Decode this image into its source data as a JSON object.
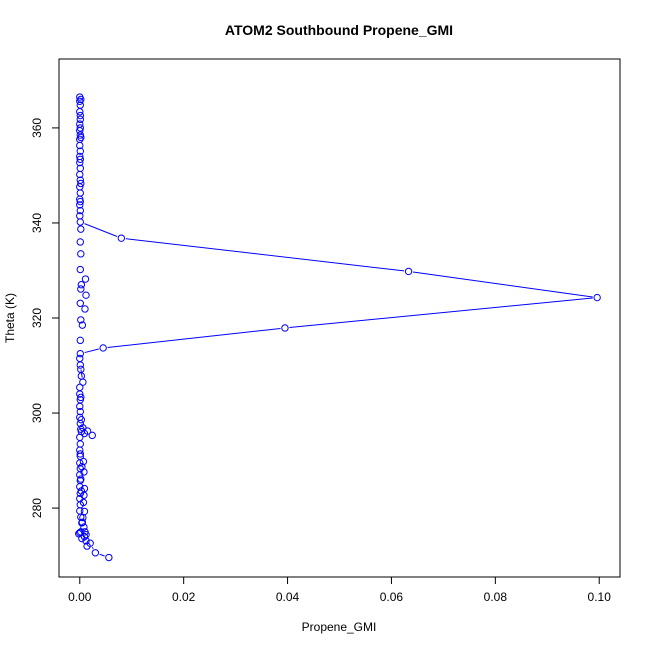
{
  "chart_data": {
    "type": "line",
    "title": "ATOM2 Southbound Propene_GMI",
    "xlabel": "Propene_GMI",
    "ylabel": "Theta (K)",
    "xlim": [
      -0.004,
      0.104
    ],
    "ylim": [
      265.5,
      374.5
    ],
    "x_ticks": [
      0.0,
      0.02,
      0.04,
      0.06,
      0.08,
      0.1
    ],
    "x_tick_labels": [
      "0.00",
      "0.02",
      "0.04",
      "0.06",
      "0.08",
      "0.10"
    ],
    "y_ticks": [
      280,
      300,
      320,
      340,
      360
    ],
    "y_tick_labels": [
      "280",
      "300",
      "320",
      "340",
      "360"
    ],
    "grid": false,
    "legend": "none",
    "colors": {
      "series": "#0000ff",
      "axes": "#000000"
    },
    "markers": "open-circle",
    "series": [
      {
        "values": [
          [
            0.0,
            366.5
          ],
          [
            0.0,
            365.6
          ],
          [
            0.0001,
            364.8
          ],
          [
            0.0,
            363.4
          ],
          [
            0.0001,
            362.6
          ],
          [
            0.0,
            360.8
          ],
          [
            0.0001,
            360.0
          ],
          [
            0.0,
            359.4
          ],
          [
            0.0001,
            358.5
          ],
          [
            0.0,
            357.6
          ],
          [
            0.0,
            356.3
          ],
          [
            0.0001,
            355.1
          ],
          [
            0.0,
            354.0
          ],
          [
            0.0,
            352.7
          ],
          [
            0.0001,
            351.5
          ],
          [
            0.0,
            350.2
          ],
          [
            0.0001,
            349.0
          ],
          [
            0.0,
            347.6
          ],
          [
            0.0001,
            346.3
          ],
          [
            0.0,
            345.0
          ],
          [
            0.0,
            343.8
          ],
          [
            0.0001,
            342.6
          ],
          [
            0.0,
            341.5
          ],
          [
            0.0001,
            340.2
          ],
          [
            0.008,
            336.8
          ],
          [
            0.0633,
            329.8
          ],
          [
            0.0996,
            324.3
          ],
          [
            0.0395,
            317.9
          ],
          [
            0.0045,
            313.7
          ],
          [
            0.0001,
            312.5
          ],
          [
            0.0,
            311.5
          ],
          [
            0.0001,
            310.1
          ],
          [
            0.0006,
            306.5
          ],
          [
            0.0,
            305.4
          ],
          [
            0.0,
            304.0
          ],
          [
            0.0001,
            302.8
          ],
          [
            0.0,
            301.4
          ],
          [
            0.0001,
            300.3
          ],
          [
            0.0,
            299.1
          ],
          [
            0.0001,
            297.8
          ],
          [
            0.0002,
            296.6
          ],
          [
            0.0003,
            296.1
          ],
          [
            0.0,
            294.9
          ],
          [
            0.0001,
            293.5
          ],
          [
            0.0,
            292.2
          ],
          [
            0.0001,
            290.9
          ],
          [
            0.0,
            289.5
          ],
          [
            0.0001,
            288.3
          ],
          [
            0.0,
            287.0
          ],
          [
            0.0001,
            285.8
          ],
          [
            0.0,
            284.5
          ],
          [
            0.0001,
            283.1
          ],
          [
            0.0,
            282.0
          ],
          [
            0.0001,
            280.7
          ],
          [
            0.0,
            279.4
          ],
          [
            0.0002,
            278.1
          ],
          [
            0.0005,
            277.0
          ],
          [
            0.0008,
            276.0
          ],
          [
            0.001,
            275.0
          ],
          [
            0.0009,
            274.0
          ],
          [
            0.0012,
            273.1
          ],
          [
            0.002,
            272.6
          ],
          [
            0.003,
            270.6
          ],
          [
            0.0056,
            269.6
          ]
        ]
      }
    ],
    "scatter_points": [
      [
        0.0015,
        296.2
      ],
      [
        0.0024,
        295.3
      ],
      [
        0.0009,
        295.7
      ],
      [
        0.0006,
        296.9
      ],
      [
        0.0011,
        328.2
      ],
      [
        0.0012,
        324.8
      ],
      [
        0.001,
        321.9
      ],
      [
        0.0003,
        327.0
      ],
      [
        0.0005,
        318.5
      ],
      [
        0.0002,
        309.2
      ],
      [
        0.0007,
        289.8
      ],
      [
        0.0008,
        287.6
      ],
      [
        0.0009,
        284.1
      ],
      [
        0.0008,
        282.7
      ],
      [
        0.0007,
        281.2
      ],
      [
        0.0009,
        279.3
      ],
      [
        0.0006,
        278.0
      ],
      [
        0.0004,
        276.9
      ],
      [
        0.0002,
        275.0
      ],
      [
        0.0,
        274.8
      ],
      [
        -0.0002,
        274.6
      ],
      [
        0.0004,
        273.6
      ],
      [
        0.0012,
        274.4
      ],
      [
        0.0014,
        272.0
      ],
      [
        0.0003,
        283.6
      ],
      [
        0.0002,
        286.1
      ],
      [
        0.0004,
        288.7
      ],
      [
        0.0001,
        291.4
      ],
      [
        0.0003,
        298.6
      ],
      [
        0.0002,
        303.3
      ],
      [
        0.0003,
        307.8
      ],
      [
        0.0001,
        315.3
      ],
      [
        0.0002,
        319.6
      ],
      [
        0.0001,
        323.1
      ],
      [
        0.0002,
        326.1
      ],
      [
        0.0001,
        330.2
      ],
      [
        0.0002,
        333.5
      ],
      [
        0.0001,
        336.0
      ],
      [
        0.0002,
        338.7
      ],
      [
        0.0001,
        344.5
      ],
      [
        0.0002,
        348.3
      ],
      [
        0.0001,
        353.4
      ],
      [
        0.0002,
        358.0
      ],
      [
        0.0001,
        361.8
      ],
      [
        0.0002,
        366.0
      ]
    ]
  }
}
